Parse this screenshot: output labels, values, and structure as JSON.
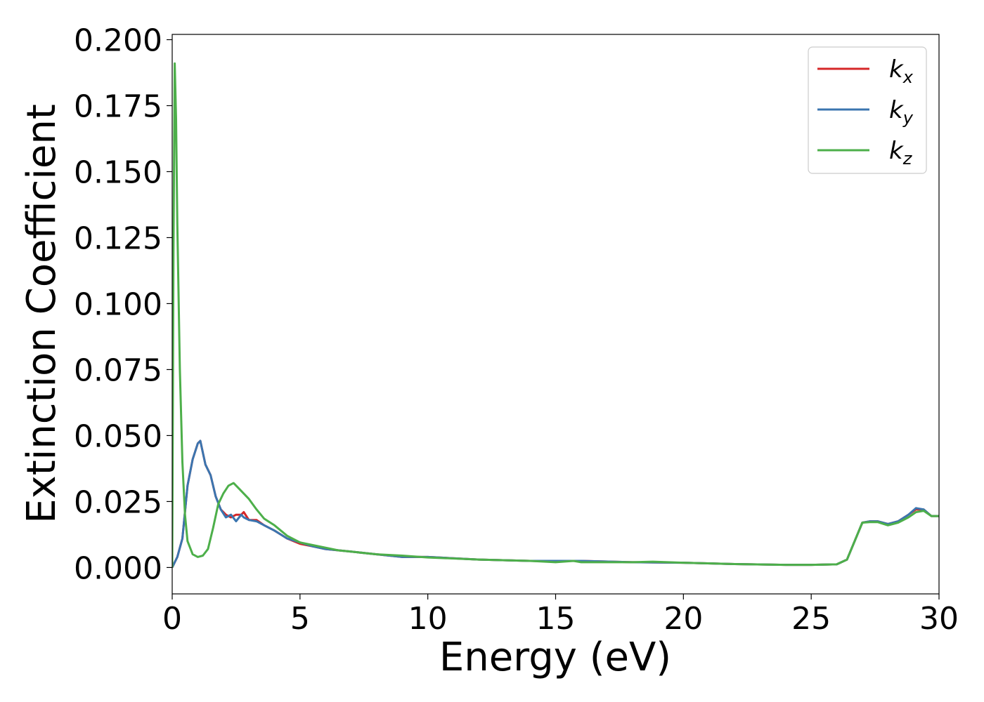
{
  "chart_data": {
    "type": "line",
    "title": "",
    "xlabel": "Energy (eV)",
    "ylabel": "Extinction Coefficient",
    "xlim": [
      0,
      30
    ],
    "ylim": [
      -0.01,
      0.202
    ],
    "xticks": [
      0,
      5,
      10,
      15,
      20,
      25,
      30
    ],
    "yticks": [
      0.0,
      0.025,
      0.05,
      0.075,
      0.1,
      0.125,
      0.15,
      0.175,
      0.2
    ],
    "xtick_labels": [
      "0",
      "5",
      "10",
      "15",
      "20",
      "25",
      "30"
    ],
    "ytick_labels": [
      "0.000",
      "0.025",
      "0.050",
      "0.075",
      "0.100",
      "0.125",
      "0.150",
      "0.175",
      "0.200"
    ],
    "grid": false,
    "legend": {
      "placement": "top-right"
    },
    "series": [
      {
        "name": "k_x",
        "base": "k",
        "sub": "x",
        "color": "#d62728",
        "x": [
          0,
          0.2,
          0.4,
          0.6,
          0.8,
          1.0,
          1.1,
          1.3,
          1.5,
          1.7,
          1.9,
          2.1,
          2.3,
          2.5,
          2.7,
          2.8,
          3.0,
          3.3,
          3.6,
          4.0,
          4.5,
          5.0,
          5.5,
          6.0,
          7.0,
          8.0,
          9.0,
          10.0,
          12.0,
          14.0,
          16.0,
          18.0,
          20.0,
          22.0,
          24.0,
          25.0,
          26.0,
          26.4,
          26.7,
          27.0,
          27.3,
          27.6,
          28.0,
          28.4,
          28.8,
          29.1,
          29.4,
          29.7,
          30.0
        ],
        "y": [
          0.0,
          0.004,
          0.011,
          0.031,
          0.041,
          0.047,
          0.048,
          0.039,
          0.035,
          0.027,
          0.022,
          0.02,
          0.019,
          0.02,
          0.02,
          0.021,
          0.018,
          0.018,
          0.016,
          0.014,
          0.011,
          0.009,
          0.008,
          0.007,
          0.006,
          0.005,
          0.004,
          0.004,
          0.003,
          0.0025,
          0.0025,
          0.002,
          0.0018,
          0.0013,
          0.001,
          0.001,
          0.0012,
          0.003,
          0.01,
          0.017,
          0.0175,
          0.0175,
          0.0165,
          0.0175,
          0.02,
          0.022,
          0.022,
          0.0195,
          0.0195
        ]
      },
      {
        "name": "k_y",
        "base": "k",
        "sub": "y",
        "color": "#3b75af",
        "x": [
          0,
          0.2,
          0.4,
          0.6,
          0.8,
          1.0,
          1.1,
          1.3,
          1.5,
          1.7,
          1.9,
          2.1,
          2.3,
          2.5,
          2.7,
          2.8,
          3.0,
          3.3,
          3.6,
          4.0,
          4.5,
          5.0,
          5.5,
          6.0,
          7.0,
          8.0,
          9.0,
          10.0,
          12.0,
          14.0,
          16.0,
          18.0,
          20.0,
          22.0,
          24.0,
          25.0,
          26.0,
          26.4,
          26.7,
          27.0,
          27.3,
          27.6,
          28.0,
          28.4,
          28.8,
          29.1,
          29.4,
          29.7,
          30.0
        ],
        "y": [
          0.0,
          0.004,
          0.011,
          0.031,
          0.041,
          0.047,
          0.048,
          0.039,
          0.035,
          0.027,
          0.022,
          0.019,
          0.02,
          0.0175,
          0.02,
          0.019,
          0.018,
          0.0175,
          0.016,
          0.014,
          0.011,
          0.0095,
          0.008,
          0.007,
          0.006,
          0.005,
          0.004,
          0.004,
          0.003,
          0.0025,
          0.0025,
          0.002,
          0.0018,
          0.0013,
          0.001,
          0.001,
          0.0012,
          0.003,
          0.01,
          0.017,
          0.0175,
          0.0175,
          0.0165,
          0.0175,
          0.02,
          0.0225,
          0.022,
          0.0195,
          0.0195
        ]
      },
      {
        "name": "k_z",
        "base": "k",
        "sub": "z",
        "color": "#4daf4a",
        "x": [
          0,
          0.05,
          0.1,
          0.15,
          0.2,
          0.3,
          0.4,
          0.5,
          0.6,
          0.8,
          1.0,
          1.2,
          1.4,
          1.6,
          1.8,
          2.0,
          2.2,
          2.4,
          2.6,
          2.8,
          3.0,
          3.3,
          3.6,
          4.0,
          4.5,
          5.0,
          5.5,
          6.0,
          6.5,
          7.0,
          8.0,
          9.0,
          10.0,
          12.0,
          14.0,
          15.0,
          15.7,
          16.0,
          18.0,
          18.8,
          20.0,
          22.0,
          24.0,
          25.0,
          26.0,
          26.4,
          26.7,
          27.0,
          27.3,
          27.6,
          28.0,
          28.4,
          28.8,
          29.1,
          29.4,
          29.7,
          30.0
        ],
        "y": [
          0.0,
          0.12,
          0.191,
          0.17,
          0.13,
          0.075,
          0.04,
          0.02,
          0.01,
          0.005,
          0.004,
          0.0045,
          0.007,
          0.015,
          0.024,
          0.028,
          0.031,
          0.032,
          0.03,
          0.028,
          0.026,
          0.022,
          0.0185,
          0.016,
          0.012,
          0.0095,
          0.0085,
          0.0075,
          0.0065,
          0.006,
          0.005,
          0.0045,
          0.0038,
          0.003,
          0.0025,
          0.002,
          0.0025,
          0.002,
          0.002,
          0.0022,
          0.0018,
          0.0013,
          0.001,
          0.001,
          0.0012,
          0.003,
          0.01,
          0.017,
          0.0172,
          0.0172,
          0.016,
          0.017,
          0.019,
          0.021,
          0.0215,
          0.0195,
          0.0195
        ]
      }
    ]
  }
}
